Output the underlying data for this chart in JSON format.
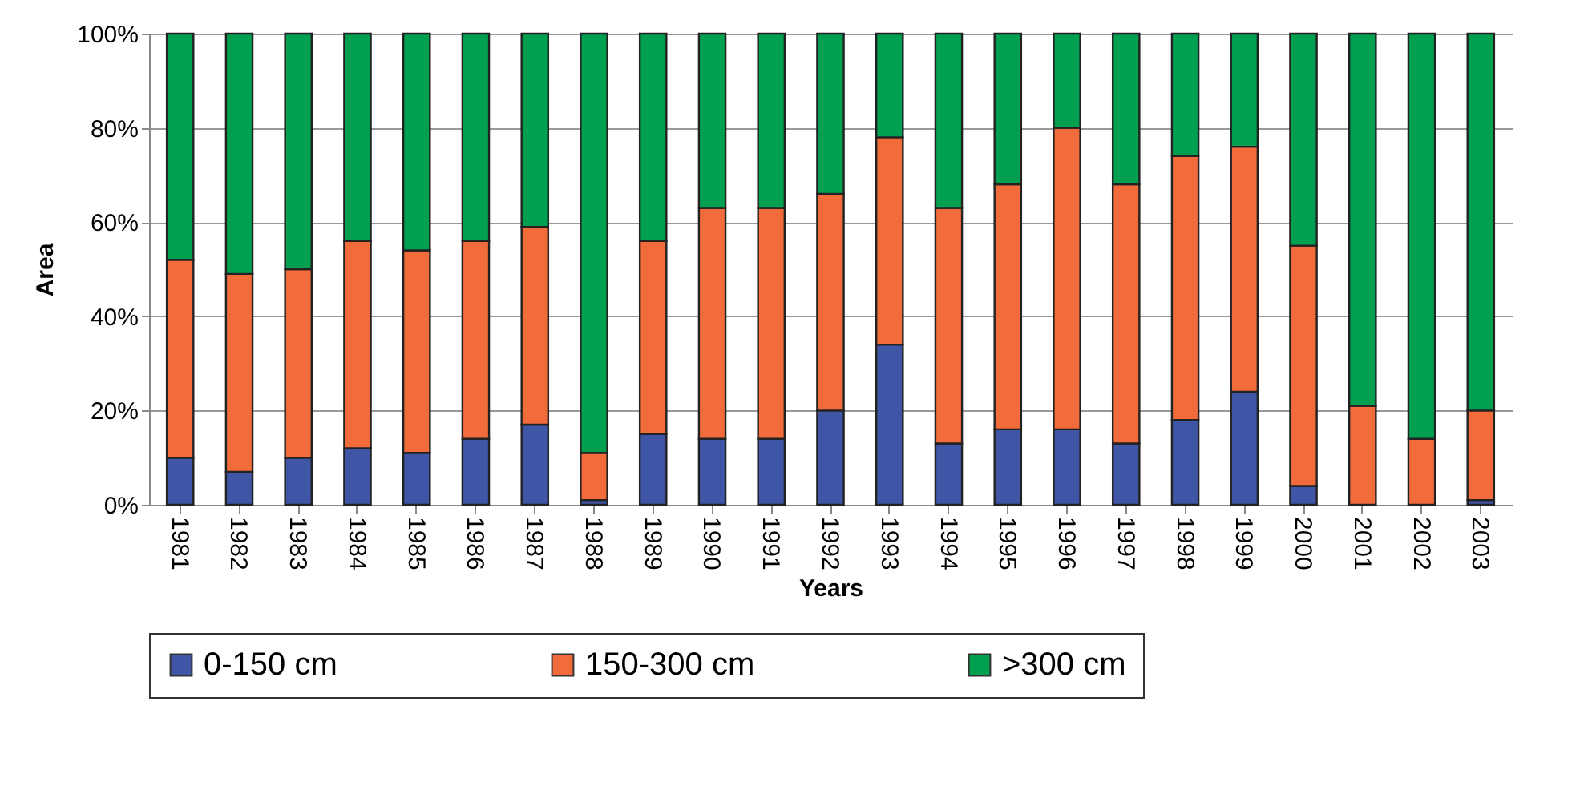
{
  "chart_data": {
    "type": "bar",
    "stacked": true,
    "xlabel": "Years",
    "ylabel": "Area",
    "categories": [
      "1981",
      "1982",
      "1983",
      "1984",
      "1985",
      "1986",
      "1987",
      "1988",
      "1989",
      "1990",
      "1991",
      "1992",
      "1993",
      "1994",
      "1995",
      "1996",
      "1997",
      "1998",
      "1999",
      "2000",
      "2001",
      "2002",
      "2003"
    ],
    "series": [
      {
        "name": "0-150 cm",
        "color": "#3f55a5",
        "values": [
          10,
          7,
          10,
          12,
          11,
          14,
          17,
          1,
          15,
          14,
          14,
          20,
          34,
          13,
          16,
          16,
          13,
          18,
          24,
          4,
          0,
          0,
          1
        ]
      },
      {
        "name": "150-300 cm",
        "color": "#f26b3a",
        "values": [
          42,
          42,
          40,
          44,
          43,
          42,
          42,
          10,
          41,
          49,
          49,
          46,
          44,
          50,
          52,
          64,
          55,
          56,
          52,
          51,
          21,
          14,
          19
        ]
      },
      {
        "name": ">300 cm",
        "color": "#00a050",
        "values": [
          48,
          51,
          50,
          44,
          46,
          44,
          41,
          89,
          44,
          37,
          37,
          34,
          22,
          37,
          32,
          20,
          32,
          26,
          24,
          45,
          79,
          86,
          80
        ]
      }
    ],
    "ylim": [
      0,
      100
    ],
    "yticks": [
      {
        "value": 0,
        "label": "0%"
      },
      {
        "value": 20,
        "label": "20%"
      },
      {
        "value": 40,
        "label": "40%"
      },
      {
        "value": 60,
        "label": "60%"
      },
      {
        "value": 80,
        "label": "80%"
      },
      {
        "value": 100,
        "label": "100%"
      }
    ],
    "grid": "y",
    "legend": "bottom"
  }
}
